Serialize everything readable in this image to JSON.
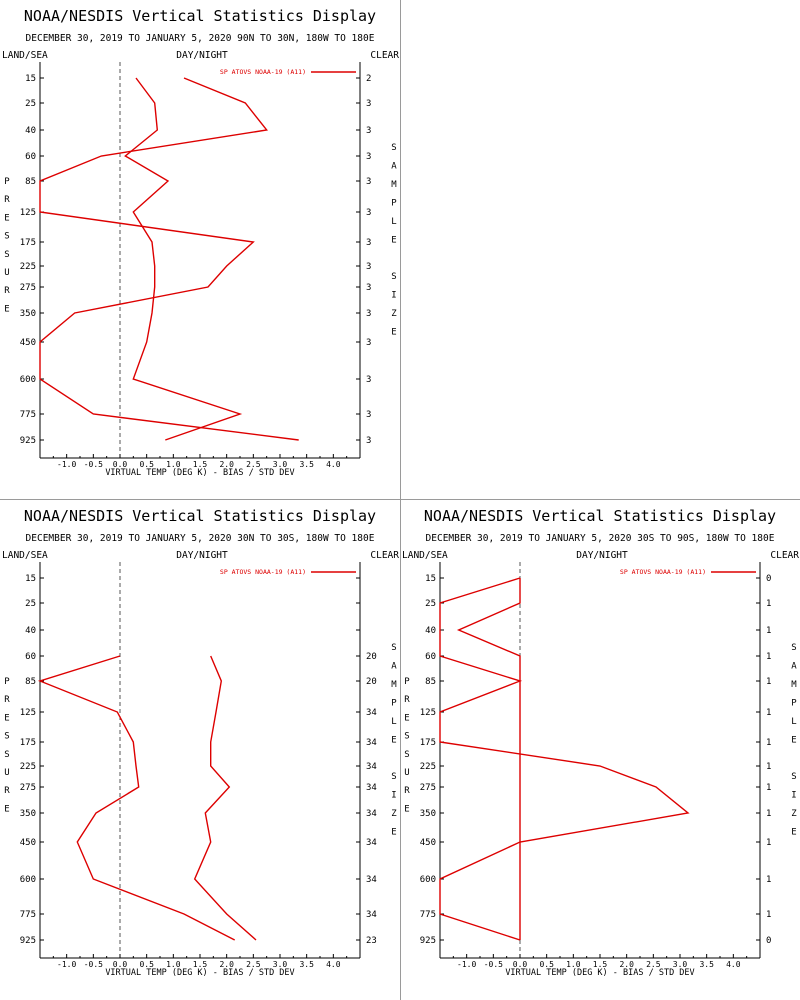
{
  "layout_labels": {
    "title": "NOAA/NESDIS Vertical Statistics Display",
    "land_sea": "LAND/SEA",
    "day_night": "DAY/NIGHT",
    "clear": "CLEAR",
    "x_axis_label": "VIRTUAL TEMP (DEG K) - BIAS / STD DEV",
    "pressure_vertical": "PRESSURE",
    "sample_size_vertical": "SAMPLE SIZE"
  },
  "colors": {
    "series": "#dd0000",
    "axes": "#000000",
    "zero_line": "#555555",
    "divider": "#9a9a9a"
  },
  "chart_data": [
    {
      "type": "line",
      "panel": "top-left",
      "title": "NOAA/NESDIS Vertical Statistics Display",
      "subtitle": "DECEMBER 30, 2019 TO JANUARY 5, 2020  90N TO 30N, 180W TO 180E",
      "legend": "SP ATOVS NOAA-19 (A11)",
      "xlabel": "VIRTUAL TEMP (DEG K) - BIAS / STD DEV",
      "ylabel": "PRESSURE",
      "right_label": "SAMPLE SIZE",
      "pressure_levels": [
        15,
        25,
        40,
        60,
        85,
        125,
        175,
        225,
        275,
        350,
        450,
        600,
        775,
        925
      ],
      "sample_size": [
        "2",
        "3",
        "3",
        "3",
        "3",
        "3",
        "3",
        "3",
        "3",
        "3",
        "3",
        "3",
        "3",
        "3"
      ],
      "xlim": [
        -1.5,
        4.5
      ],
      "x_ticks": [
        "-1.0",
        "-0.5",
        "0.0",
        "0.5",
        "1.0",
        "1.5",
        "2.0",
        "2.5",
        "3.0",
        "3.5",
        "4.0"
      ],
      "series": [
        {
          "name": "bias",
          "values": [
            1.2,
            2.35,
            2.75,
            -0.35,
            -1.5,
            -1.5,
            2.5,
            2.0,
            1.65,
            -0.85,
            -1.5,
            -1.5,
            -0.5,
            3.35
          ]
        },
        {
          "name": "std_dev",
          "values": [
            0.3,
            0.65,
            0.7,
            0.1,
            0.9,
            0.25,
            0.6,
            0.65,
            0.65,
            0.6,
            0.5,
            0.25,
            2.25,
            0.85
          ]
        }
      ]
    },
    {
      "type": "line",
      "panel": "bottom-left",
      "title": "NOAA/NESDIS Vertical Statistics Display",
      "subtitle": "DECEMBER 30, 2019 TO JANUARY 5, 2020  30N TO 30S, 180W TO 180E",
      "legend": "SP ATOVS NOAA-19 (A11)",
      "xlabel": "VIRTUAL TEMP (DEG K) - BIAS / STD DEV",
      "ylabel": "PRESSURE",
      "right_label": "SAMPLE SIZE",
      "pressure_levels": [
        15,
        25,
        40,
        60,
        85,
        125,
        175,
        225,
        275,
        350,
        450,
        600,
        775,
        925
      ],
      "sample_size": [
        "",
        "",
        "",
        "20",
        "20",
        "34",
        "34",
        "34",
        "34",
        "34",
        "34",
        "34",
        "34",
        "23"
      ],
      "xlim": [
        -1.5,
        4.5
      ],
      "x_ticks": [
        "-1.0",
        "-0.5",
        "0.0",
        "0.5",
        "1.0",
        "1.5",
        "2.0",
        "2.5",
        "3.0",
        "3.5",
        "4.0"
      ],
      "series": [
        {
          "name": "bias",
          "values": [
            null,
            null,
            null,
            0.0,
            -1.5,
            -0.05,
            0.25,
            0.3,
            0.35,
            -0.45,
            -0.8,
            -0.5,
            1.2,
            2.15
          ]
        },
        {
          "name": "std_dev",
          "values": [
            null,
            null,
            null,
            1.7,
            1.9,
            1.8,
            1.7,
            1.7,
            2.05,
            1.6,
            1.7,
            1.4,
            2.0,
            2.55
          ]
        }
      ]
    },
    {
      "type": "line",
      "panel": "bottom-right",
      "title": "NOAA/NESDIS Vertical Statistics Display",
      "subtitle": "DECEMBER 30, 2019 TO JANUARY 5, 2020  30S TO 90S, 180W TO 180E",
      "legend": "SP ATOVS NOAA-19 (A11)",
      "xlabel": "VIRTUAL TEMP (DEG K) - BIAS / STD DEV",
      "ylabel": "PRESSURE",
      "right_label": "SAMPLE SIZE",
      "pressure_levels": [
        15,
        25,
        40,
        60,
        85,
        125,
        175,
        225,
        275,
        350,
        450,
        600,
        775,
        925
      ],
      "sample_size": [
        "0",
        "1",
        "1",
        "1",
        "1",
        "1",
        "1",
        "1",
        "1",
        "1",
        "1",
        "1",
        "1",
        "0"
      ],
      "xlim": [
        -1.5,
        4.5
      ],
      "x_ticks": [
        "-1.0",
        "-0.5",
        "0.0",
        "0.5",
        "1.0",
        "1.5",
        "2.0",
        "2.5",
        "3.0",
        "3.5",
        "4.0"
      ],
      "series": [
        {
          "name": "bias",
          "values": [
            0.0,
            -1.5,
            -1.5,
            -1.5,
            0.0,
            -1.5,
            -1.5,
            1.5,
            2.55,
            3.15,
            0.0,
            -1.5,
            -1.5,
            0.0
          ]
        },
        {
          "name": "std_dev",
          "values": [
            0.0,
            0.0,
            -1.15,
            0.0,
            0.0,
            0.0,
            0.0,
            0.0,
            0.0,
            0.0,
            0.0,
            0.0,
            0.0,
            0.0
          ]
        }
      ]
    }
  ]
}
